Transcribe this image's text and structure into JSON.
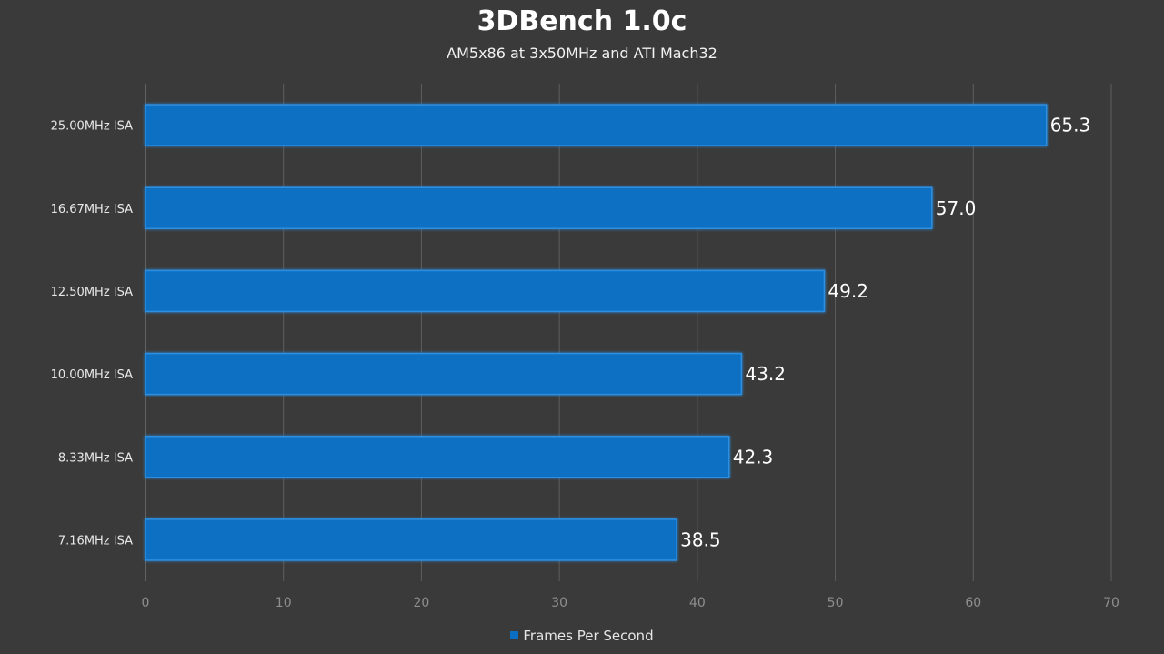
{
  "chart_data": {
    "type": "bar",
    "orientation": "horizontal",
    "title": "3DBench 1.0c",
    "subtitle": "AM5x86 at 3x50MHz and ATI Mach32",
    "categories": [
      "25.00MHz ISA",
      "16.67MHz ISA",
      "12.50MHz ISA",
      "10.00MHz ISA",
      "8.33MHz ISA",
      "7.16MHz ISA"
    ],
    "series": [
      {
        "name": "Frames Per Second",
        "values": [
          65.3,
          57.0,
          49.2,
          43.2,
          42.3,
          38.5
        ],
        "labels": [
          "65.3",
          "57.0",
          "49.2",
          "43.2",
          "42.3",
          "38.5"
        ]
      }
    ],
    "xlim": [
      0,
      70
    ],
    "xticks": [
      0,
      10,
      20,
      30,
      40,
      50,
      60,
      70
    ],
    "xlabel": "",
    "ylabel": "",
    "grid": "vertical",
    "legend_position": "bottom"
  },
  "colors": {
    "background": "#3a3a3a",
    "bar": "#0a6fc2",
    "bar_edge": "#2f8fe0",
    "grid": "#5e5e5e",
    "axis": "#8a8a8a",
    "tick_label": "#8e8e8e",
    "category_label": "#e8e8e8",
    "value_label": "#ffffff"
  }
}
